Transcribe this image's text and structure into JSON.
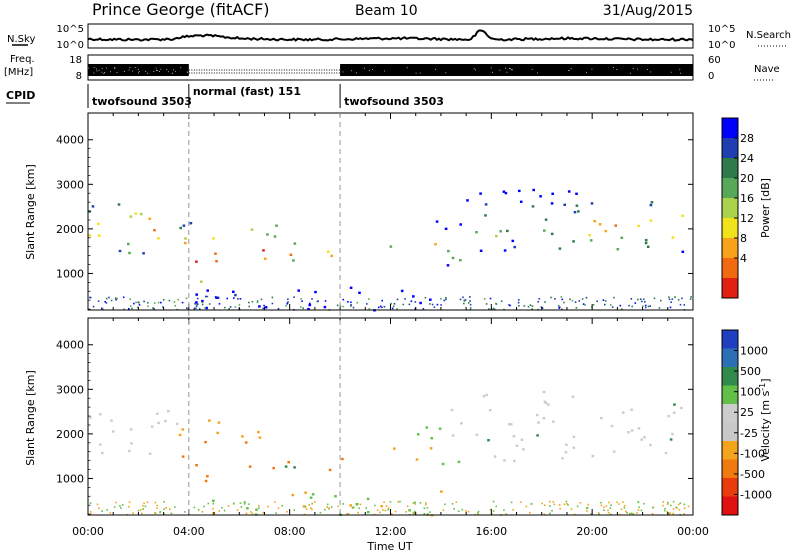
{
  "header": {
    "station": "Prince George (fitACF)",
    "beam": "Beam 10",
    "date": "31/Aug/2015"
  },
  "top_panels": {
    "nsky_label": "N.Sky",
    "nsky_ticks": [
      "10^5",
      "10^0"
    ],
    "nsearch_label": "N.Search",
    "freq_label": "Freq.",
    "freq_unit": "[MHz]",
    "freq_ticks": [
      "18",
      "8"
    ],
    "nave_ticks": [
      "60",
      "0"
    ],
    "nave_label": "Nave",
    "cpid_label": "CPID",
    "cpid_segments": [
      {
        "label": "twofsound 3503",
        "start_h": 0,
        "end_h": 4
      },
      {
        "label": "normal (fast) 151",
        "start_h": 4,
        "end_h": 10
      },
      {
        "label": "twofsound 3503",
        "start_h": 10,
        "end_h": 24
      }
    ]
  },
  "chart_data": [
    {
      "type": "heatmap",
      "name": "power",
      "ylabel": "Slant Range [km]",
      "yticks": [
        "4000",
        "3000",
        "2000",
        "1000"
      ],
      "ylim": [
        180,
        4600
      ],
      "colorbar_label": "Power [dB]",
      "colorbar_ticks": [
        "28",
        "24",
        "20",
        "16",
        "12",
        "8",
        "4"
      ],
      "colorbar_range": [
        0,
        32
      ],
      "colors": [
        "#0000ff",
        "#1f3fb0",
        "#2f7a4a",
        "#58a85a",
        "#aad24a",
        "#f2e21c",
        "#f7a21a",
        "#f26a10",
        "#e02010"
      ]
    },
    {
      "type": "heatmap",
      "name": "velocity",
      "ylabel": "Slant Range [km]",
      "yticks": [
        "4000",
        "3000",
        "2000",
        "1000"
      ],
      "ylim": [
        180,
        4600
      ],
      "colorbar_label": "Velocity [m s^-1]",
      "colorbar_ticks": [
        "1000",
        "500",
        "100",
        "25",
        "-25",
        "-100",
        "-500",
        "-1000"
      ],
      "colors": [
        "#1f3fc0",
        "#2d6fb5",
        "#2f8a4c",
        "#62c048",
        "#cccccc",
        "#c8c8c8",
        "#f2a41a",
        "#f07a10",
        "#e83c0c",
        "#e01010"
      ]
    }
  ],
  "xaxis": {
    "label": "Time UT",
    "ticks": [
      "00:00",
      "04:00",
      "08:00",
      "12:00",
      "16:00",
      "20:00",
      "00:00"
    ],
    "range_h": [
      0,
      24
    ]
  }
}
